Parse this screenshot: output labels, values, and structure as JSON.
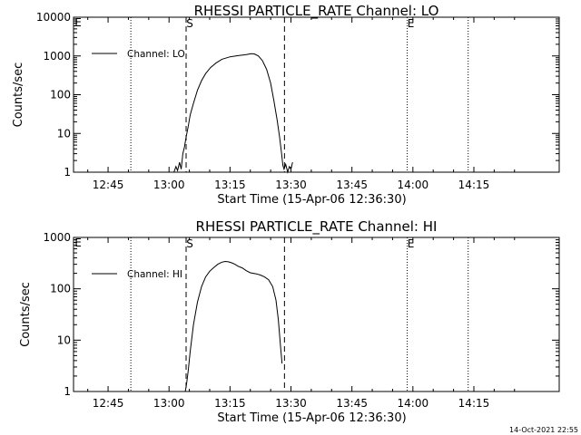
{
  "chart_data": [
    {
      "type": "line",
      "title": "RHESSI PARTICLE_RATE Channel: LO",
      "xlabel": "Start Time (15-Apr-06 12:36:30)",
      "ylabel": "Counts/sec",
      "yscale": "log",
      "ylim": [
        1,
        10000
      ],
      "yticks": [
        {
          "value": 1,
          "label": "1"
        },
        {
          "value": 10,
          "label": "10"
        },
        {
          "value": 100,
          "label": "100"
        },
        {
          "value": 1000,
          "label": "1000"
        },
        {
          "value": 10000,
          "label": "10000"
        }
      ],
      "xlim": [
        36.5,
        156
      ],
      "xticks": [
        {
          "value": 45,
          "label": "12:45"
        },
        {
          "value": 60,
          "label": "13:00"
        },
        {
          "value": 75,
          "label": "13:15"
        },
        {
          "value": 90,
          "label": "13:30"
        },
        {
          "value": 105,
          "label": "13:45"
        },
        {
          "value": 120,
          "label": "14:00"
        },
        {
          "value": 135,
          "label": "14:15"
        }
      ],
      "vlines": [
        {
          "x": 50.6,
          "style": "dotted",
          "label": ""
        },
        {
          "x": 64.2,
          "style": "dashed",
          "label": "S"
        },
        {
          "x": 88.4,
          "style": "dashed",
          "label": ""
        },
        {
          "x": 118.6,
          "style": "dotted",
          "label": "E"
        },
        {
          "x": 133.6,
          "style": "dotted",
          "label": ""
        }
      ],
      "corner_label": "E",
      "legend": {
        "label": "Channel: LO",
        "position": "top-left"
      },
      "series": [
        {
          "name": "Channel: LO",
          "x": [
            61.2,
            61.7,
            62.1,
            62.6,
            63.0,
            63.4,
            63.8,
            64.2,
            64.7,
            65.2,
            66.0,
            67.0,
            68.0,
            69.0,
            70.2,
            71.5,
            73.0,
            75.0,
            77.0,
            79.0,
            80.2,
            81.0,
            82.0,
            83.0,
            84.0,
            85.0,
            85.8,
            86.6,
            87.2,
            87.7,
            88.0,
            88.3,
            88.7,
            89.2,
            89.6,
            90.0,
            90.4
          ],
          "y": [
            1,
            1.4,
            1.1,
            1.8,
            1.2,
            3,
            4.5,
            8,
            15,
            30,
            60,
            130,
            230,
            350,
            500,
            650,
            820,
            950,
            1020,
            1080,
            1150,
            1130,
            1000,
            750,
            450,
            200,
            70,
            22,
            8,
            3,
            1.5,
            1.2,
            1.6,
            1,
            1.4,
            1.2,
            1.8
          ]
        }
      ]
    },
    {
      "type": "line",
      "title": "RHESSI PARTICLE_RATE Channel: HI",
      "xlabel": "Start Time (15-Apr-06 12:36:30)",
      "ylabel": "Counts/sec",
      "yscale": "log",
      "ylim": [
        1,
        1000
      ],
      "yticks": [
        {
          "value": 1,
          "label": "1"
        },
        {
          "value": 10,
          "label": "10"
        },
        {
          "value": 100,
          "label": "100"
        },
        {
          "value": 1000,
          "label": "1000"
        }
      ],
      "xlim": [
        36.5,
        156
      ],
      "xticks": [
        {
          "value": 45,
          "label": "12:45"
        },
        {
          "value": 60,
          "label": "13:00"
        },
        {
          "value": 75,
          "label": "13:15"
        },
        {
          "value": 90,
          "label": "13:30"
        },
        {
          "value": 105,
          "label": "13:45"
        },
        {
          "value": 120,
          "label": "14:00"
        },
        {
          "value": 135,
          "label": "14:15"
        }
      ],
      "vlines": [
        {
          "x": 50.6,
          "style": "dotted",
          "label": ""
        },
        {
          "x": 64.2,
          "style": "dashed",
          "label": "S"
        },
        {
          "x": 88.4,
          "style": "dashed",
          "label": ""
        },
        {
          "x": 118.6,
          "style": "dotted",
          "label": "E"
        },
        {
          "x": 133.6,
          "style": "dotted",
          "label": ""
        }
      ],
      "corner_label": "E",
      "legend": {
        "label": "Channel: HI",
        "position": "top-left"
      },
      "series": [
        {
          "name": "Channel: HI",
          "x": [
            64.0,
            64.3,
            64.7,
            65.2,
            66.0,
            67.0,
            68.0,
            69.0,
            70.0,
            71.0,
            72.0,
            73.0,
            73.8,
            74.6,
            75.4,
            76.2,
            77.0,
            78.0,
            79.0,
            80.0,
            81.5,
            82.5,
            83.5,
            84.5,
            85.5,
            86.3,
            86.9,
            87.4,
            87.8
          ],
          "y": [
            1,
            1.4,
            2.5,
            6,
            20,
            55,
            110,
            170,
            220,
            260,
            300,
            330,
            340,
            335,
            320,
            300,
            275,
            255,
            225,
            205,
            195,
            185,
            170,
            150,
            110,
            60,
            25,
            8,
            3.5
          ]
        }
      ]
    }
  ],
  "footer": {
    "timestamp": "14-Oct-2021 22:55"
  }
}
